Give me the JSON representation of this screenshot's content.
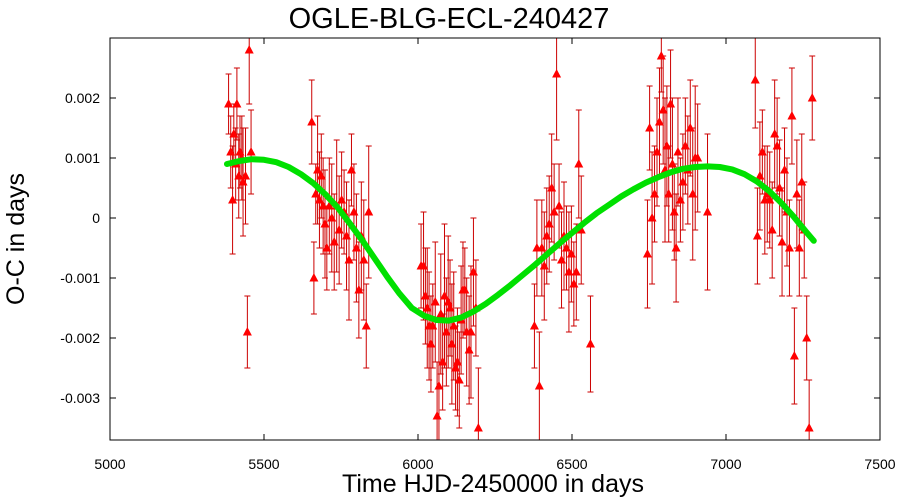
{
  "chart_data": {
    "type": "scatter",
    "title": "OGLE-BLG-ECL-240427",
    "xlabel": "Time HJD-2450000 in days",
    "ylabel": "O-C in days",
    "xlim": [
      5000,
      7500
    ],
    "ylim": [
      -0.0037,
      0.003
    ],
    "xticks": [
      5000,
      5500,
      6000,
      6500,
      7000,
      7500
    ],
    "xtick_labels": [
      "5000",
      "5500",
      "6000",
      "6500",
      "7000",
      "7500"
    ],
    "yticks": [
      -0.003,
      -0.002,
      -0.001,
      0,
      0.001,
      0.002
    ],
    "ytick_labels": [
      "-0.003",
      "-0.002",
      "-0.001",
      "0",
      "0.001",
      "0.002"
    ],
    "grid": false,
    "marker_color": "#ff0000",
    "errorbar_color": "#cc0000",
    "fit_color": "#00e000",
    "series": [
      {
        "marker": "triangle",
        "x": [
          5385,
          5392,
          5398,
          5402,
          5408,
          5412,
          5418,
          5422,
          5428,
          5432,
          5440,
          5446,
          5452,
          5458,
          5655,
          5662,
          5668,
          5674,
          5680,
          5686,
          5692,
          5698,
          5704,
          5712,
          5720,
          5728,
          5736,
          5744,
          5752,
          5760,
          5768,
          5776,
          5784,
          5792,
          5800,
          5808,
          5816,
          5824,
          5832,
          5840,
          6010,
          6018,
          6024,
          6030,
          6036,
          6042,
          6048,
          6056,
          6062,
          6068,
          6074,
          6080,
          6086,
          6092,
          6098,
          6104,
          6110,
          6116,
          6122,
          6128,
          6134,
          6140,
          6146,
          6152,
          6158,
          6166,
          6172,
          6180,
          6188,
          6196,
          6378,
          6386,
          6394,
          6402,
          6410,
          6418,
          6426,
          6434,
          6442,
          6450,
          6458,
          6466,
          6474,
          6482,
          6490,
          6498,
          6506,
          6514,
          6522,
          6530,
          6560,
          6745,
          6752,
          6760,
          6768,
          6776,
          6784,
          6790,
          6796,
          6802,
          6808,
          6814,
          6820,
          6826,
          6832,
          6838,
          6844,
          6852,
          6860,
          6868,
          6876,
          6884,
          6892,
          6900,
          6908,
          6940,
          7095,
          7102,
          7110,
          7118,
          7126,
          7134,
          7142,
          7150,
          7158,
          7166,
          7174,
          7182,
          7190,
          7198,
          7206,
          7214,
          7222,
          7230,
          7238,
          7246,
          7254,
          7262,
          7270,
          7280
        ],
        "y": [
          0.0019,
          0.0011,
          0.0003,
          0.0014,
          0.0009,
          0.0019,
          0.0007,
          0.0011,
          0.001,
          0.0006,
          0.0007,
          -0.0019,
          0.0028,
          0.0011,
          0.0016,
          -0.001,
          0.0004,
          0.0008,
          0.0003,
          0.0007,
          0.0002,
          -0.0001,
          -0.0005,
          0.0002,
          0.0,
          -0.0004,
          0.0002,
          -0.0002,
          0.0003,
          0.0001,
          -0.0003,
          -0.0007,
          0.0008,
          0.0001,
          -0.0005,
          -0.0012,
          -0.0003,
          -0.0007,
          -0.0018,
          0.0001,
          -0.0008,
          -0.0008,
          -0.0013,
          -0.0015,
          -0.0018,
          -0.0021,
          -0.0018,
          -0.0014,
          -0.0033,
          -0.0028,
          -0.0016,
          -0.0024,
          -0.0013,
          -0.0019,
          -0.0014,
          -0.0015,
          -0.0021,
          -0.0018,
          -0.0025,
          -0.0024,
          -0.0027,
          -0.0017,
          -0.0012,
          -0.0012,
          -0.0019,
          -0.0022,
          -0.0019,
          -0.0009,
          -0.0015,
          -0.0035,
          -0.0018,
          -0.0005,
          -0.0028,
          -0.0005,
          -0.0008,
          -0.0003,
          -0.0001,
          0.0005,
          0.0001,
          0.0024,
          0.0002,
          -0.0007,
          -0.0003,
          -0.0005,
          -0.0009,
          -0.0006,
          -0.0011,
          -0.0009,
          0.0009,
          -0.0002,
          -0.0021,
          -0.0006,
          0.0015,
          0.0,
          0.0004,
          0.0011,
          0.0016,
          0.0027,
          0.0018,
          0.0008,
          0.0012,
          0.0004,
          0.0019,
          0.0009,
          0.0001,
          -0.0005,
          0.0011,
          0.0003,
          0.0006,
          0.0012,
          0.0008,
          0.0015,
          0.0004,
          0.001,
          0.001,
          0.0001,
          0.0023,
          -0.0003,
          0.0007,
          0.0011,
          0.0003,
          0.0004,
          0.0003,
          -0.0002,
          0.0014,
          0.0012,
          0.0005,
          -0.0004,
          0.0008,
          0.0001,
          -0.0005,
          0.0017,
          -0.0023,
          0.0004,
          -0.0005,
          0.0006,
          -0.0002,
          -0.002,
          -0.0035,
          0.002
        ],
        "yerr": [
          0.0005,
          0.0006,
          0.0009,
          0.0005,
          0.0006,
          0.0006,
          0.0007,
          0.0006,
          0.0007,
          0.0009,
          0.0008,
          0.0006,
          0.0009,
          0.0007,
          0.0007,
          0.0006,
          0.0005,
          0.0009,
          0.0008,
          0.0007,
          0.0008,
          0.0009,
          0.0007,
          0.0008,
          0.0009,
          0.0008,
          0.0011,
          0.0009,
          0.0008,
          0.0007,
          0.0009,
          0.001,
          0.0006,
          0.0008,
          0.0009,
          0.0008,
          0.0009,
          0.001,
          0.0007,
          0.0011,
          0.0007,
          0.0009,
          0.0008,
          0.001,
          0.0009,
          0.0008,
          0.0007,
          0.001,
          0.0009,
          0.0011,
          0.001,
          0.0008,
          0.0012,
          0.0009,
          0.0011,
          0.0008,
          0.001,
          0.0009,
          0.0007,
          0.0009,
          0.0008,
          0.0009,
          0.0008,
          0.0007,
          0.0009,
          0.0009,
          0.0011,
          0.0009,
          0.0008,
          0.001,
          0.0007,
          0.0008,
          0.0009,
          0.0008,
          0.0009,
          0.0008,
          0.0008,
          0.0009,
          0.0008,
          0.0011,
          0.0007,
          0.0008,
          0.0009,
          0.0007,
          0.001,
          0.0008,
          0.0007,
          0.0008,
          0.0009,
          0.0009,
          0.0008,
          0.0009,
          0.0007,
          0.0011,
          0.0008,
          0.0009,
          0.0009,
          0.0006,
          0.0009,
          0.0012,
          0.001,
          0.0008,
          0.0009,
          0.0011,
          0.0008,
          0.0009,
          0.0009,
          0.0007,
          0.0008,
          0.0008,
          0.0009,
          0.0008,
          0.0011,
          0.0012,
          0.0009,
          0.0013,
          0.0008,
          0.0008,
          0.0009,
          0.0007,
          0.0009,
          0.0008,
          0.0008,
          0.0008,
          0.0009,
          0.0008,
          0.0008,
          0.0009,
          0.0007,
          0.0009,
          0.0008,
          0.0008,
          0.0008,
          0.0009,
          0.0008,
          0.0008,
          0.0008,
          0.0007,
          0.0008,
          0.0007
        ]
      },
      {
        "kind": "fit-curve",
        "x": [
          5380,
          5420,
          5460,
          5500,
          5540,
          5580,
          5620,
          5660,
          5700,
          5740,
          5780,
          5820,
          5860,
          5900,
          5940,
          5980,
          6020,
          6060,
          6100,
          6140,
          6180,
          6220,
          6260,
          6300,
          6340,
          6380,
          6420,
          6460,
          6500,
          6540,
          6580,
          6620,
          6660,
          6700,
          6740,
          6780,
          6820,
          6860,
          6900,
          6940,
          6980,
          7020,
          7060,
          7100,
          7140,
          7180,
          7220,
          7260,
          7285
        ],
        "y": [
          0.0009,
          0.00095,
          0.00098,
          0.00097,
          0.00093,
          0.00085,
          0.00073,
          0.00058,
          0.00039,
          0.00017,
          -0.0001,
          -0.00038,
          -0.00068,
          -0.00098,
          -0.00126,
          -0.0015,
          -0.00163,
          -0.0017,
          -0.00171,
          -0.00166,
          -0.00156,
          -0.00143,
          -0.00128,
          -0.00112,
          -0.00095,
          -0.00078,
          -0.0006,
          -0.00042,
          -0.00025,
          -8e-05,
          8e-05,
          0.00022,
          0.00036,
          0.00048,
          0.00059,
          0.00068,
          0.00076,
          0.00082,
          0.00085,
          0.00086,
          0.00085,
          0.00081,
          0.00073,
          0.00061,
          0.00045,
          0.00025,
          2e-05,
          -0.00023,
          -0.00038
        ]
      }
    ]
  }
}
